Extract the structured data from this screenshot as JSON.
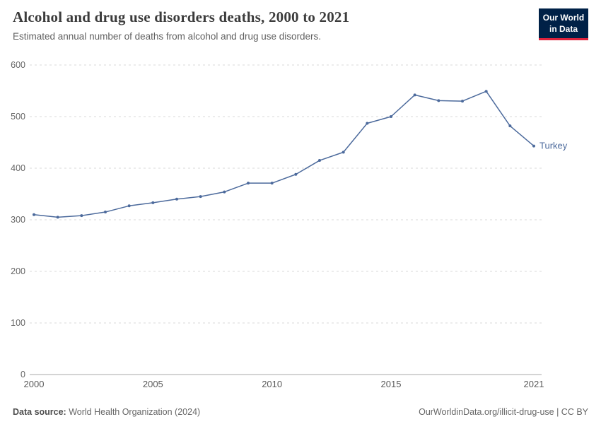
{
  "header": {
    "title": "Alcohol and drug use disorders deaths, 2000 to 2021",
    "subtitle": "Estimated annual number of deaths from alcohol and drug use disorders."
  },
  "logo": {
    "line1": "Our World",
    "line2": "in Data",
    "bg_color": "#002147",
    "accent_color": "#e0233c"
  },
  "chart_data": {
    "type": "line",
    "title": "Alcohol and drug use disorders deaths, 2000 to 2021",
    "xlabel": "",
    "ylabel": "",
    "x": [
      2000,
      2001,
      2002,
      2003,
      2004,
      2005,
      2006,
      2007,
      2008,
      2009,
      2010,
      2011,
      2012,
      2013,
      2014,
      2015,
      2016,
      2017,
      2018,
      2019,
      2020,
      2021
    ],
    "series": [
      {
        "name": "Turkey",
        "color": "#4c6a9c",
        "values": [
          310,
          305,
          308,
          315,
          327,
          333,
          340,
          345,
          354,
          371,
          371,
          388,
          415,
          431,
          487,
          500,
          542,
          531,
          530,
          549,
          482,
          443
        ]
      }
    ],
    "xticks": [
      2000,
      2005,
      2010,
      2015,
      2021
    ],
    "yticks": [
      0,
      100,
      200,
      300,
      400,
      500,
      600
    ],
    "ylim": [
      0,
      600
    ],
    "grid": true,
    "legend": "end-of-line-label",
    "grid_color": "#d9d9d9",
    "axis_color": "#a8a8a8",
    "tick_color": "#666666"
  },
  "footer": {
    "source_label": "Data source:",
    "source": "World Health Organization (2024)",
    "attribution": "OurWorldinData.org/illicit-drug-use | CC BY"
  }
}
